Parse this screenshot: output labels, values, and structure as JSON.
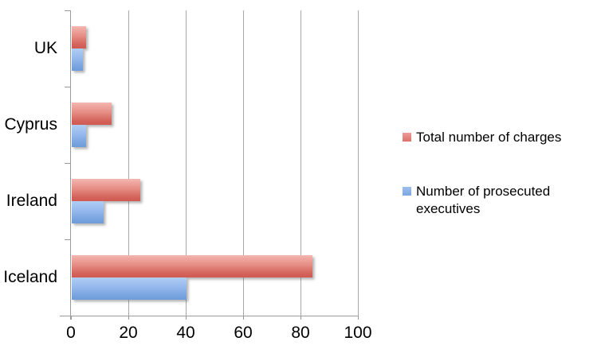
{
  "chart_data": {
    "type": "bar",
    "orientation": "horizontal",
    "title": "",
    "categories": [
      "UK",
      "Cyprus",
      "Ireland",
      "Iceland"
    ],
    "series": [
      {
        "name": "Total number of charges",
        "color": "#dd7168",
        "values": [
          5,
          14,
          24,
          84
        ]
      },
      {
        "name": "Number of prosecuted executives",
        "color": "#7ba6e0",
        "values": [
          4,
          5,
          11,
          40
        ]
      }
    ],
    "xlim": [
      0,
      100
    ],
    "x_ticks": [
      0,
      20,
      40,
      60,
      80,
      100
    ],
    "grid": true,
    "legend_position": "right",
    "background": "#ffffff",
    "gridline_color": "#a8a8a8",
    "axis_color": "#9a9a9a",
    "text_color": "#000000"
  }
}
